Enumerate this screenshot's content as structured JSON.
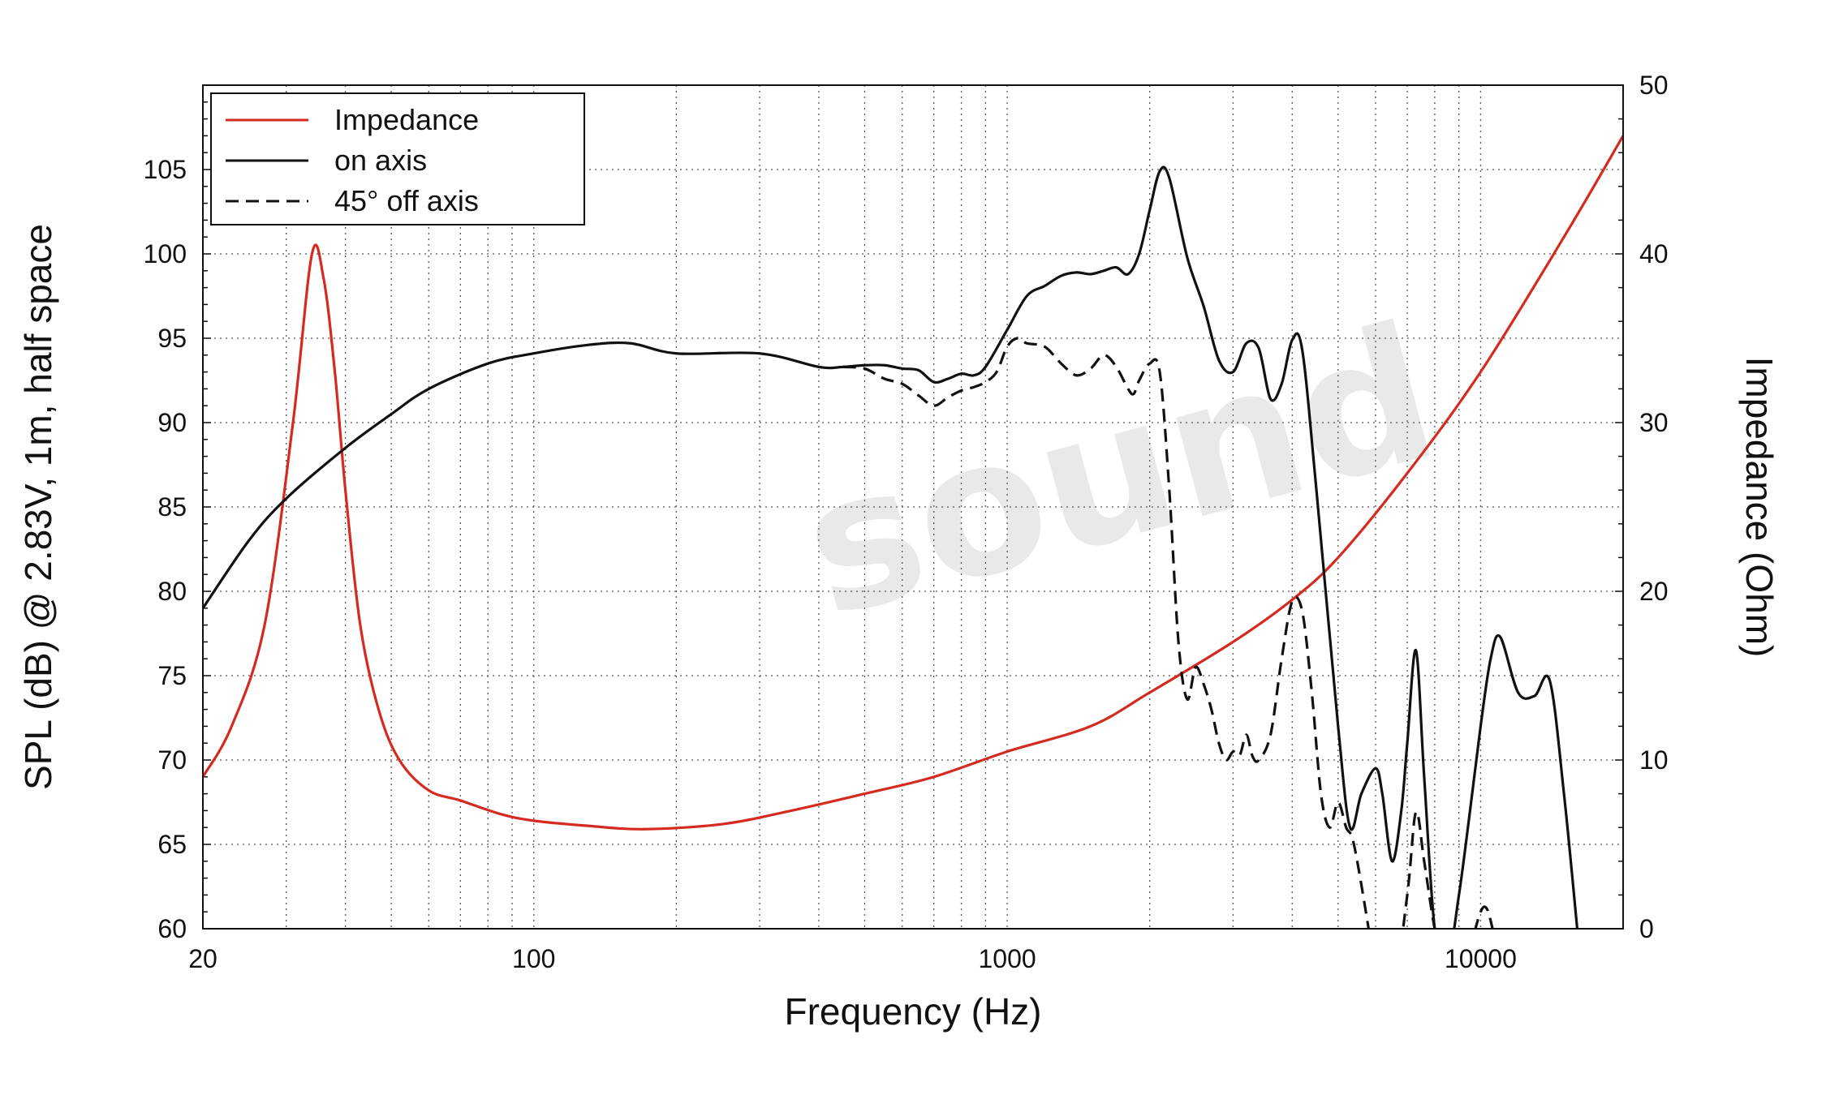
{
  "watermark": "sound",
  "chart_data": {
    "type": "line",
    "x_scale": "log",
    "xlim": [
      20,
      20000
    ],
    "ylim_left": [
      60,
      110
    ],
    "ylim_right": [
      0,
      50
    ],
    "xlabel": "Frequency (Hz)",
    "ylabel_left": "SPL (dB) @ 2.83V, 1m, half space",
    "ylabel_right": "Impedance (Ohm)",
    "x_ticks": [
      20,
      100,
      1000,
      10000
    ],
    "y_left_ticks": [
      60,
      65,
      70,
      75,
      80,
      85,
      90,
      95,
      100,
      105
    ],
    "y_right_ticks": [
      0,
      10,
      20,
      30,
      40,
      50
    ],
    "grid": true,
    "legend_position": "top-left",
    "series": [
      {
        "name": "Impedance",
        "axis": "right",
        "color": "#d42a20",
        "style": "solid",
        "x": [
          20,
          23,
          27,
          31,
          34,
          36,
          38,
          40,
          43,
          47,
          52,
          60,
          70,
          85,
          100,
          130,
          170,
          250,
          350,
          500,
          700,
          1000,
          1500,
          2000,
          3000,
          4000,
          5000,
          7000,
          10000,
          15000,
          20000
        ],
        "y": [
          9,
          12,
          18,
          30,
          40,
          38.5,
          33,
          26,
          18,
          13,
          10,
          8.2,
          7.6,
          6.8,
          6.4,
          6.1,
          5.9,
          6.2,
          7,
          8,
          9,
          10.5,
          12,
          14,
          17,
          19.5,
          22,
          27,
          33,
          41,
          47
        ]
      },
      {
        "name": "on axis",
        "axis": "left",
        "color": "#111111",
        "style": "solid",
        "x": [
          20,
          25,
          30,
          40,
          50,
          60,
          80,
          100,
          130,
          160,
          200,
          300,
          400,
          450,
          500,
          550,
          600,
          650,
          700,
          750,
          800,
          850,
          900,
          1000,
          1100,
          1200,
          1300,
          1400,
          1500,
          1600,
          1700,
          1800,
          1900,
          2000,
          2100,
          2200,
          2400,
          2600,
          2800,
          3000,
          3200,
          3400,
          3600,
          3800,
          4000,
          4200,
          4500,
          5000,
          5300,
          5600,
          6000,
          6200,
          6500,
          6800,
          7000,
          7300,
          7600,
          8000,
          8500,
          9000,
          9500,
          10000,
          10500,
          11000,
          12000,
          13000,
          14000,
          15000,
          16000
        ],
        "y": [
          79,
          83,
          85.5,
          88.5,
          90.5,
          92,
          93.5,
          94.1,
          94.6,
          94.7,
          94.1,
          94.1,
          93.3,
          93.3,
          93.4,
          93.4,
          93.2,
          93.1,
          92.4,
          92.6,
          92.9,
          92.8,
          93.3,
          95.5,
          97.5,
          98.1,
          98.7,
          98.9,
          98.8,
          99,
          99.2,
          98.8,
          100,
          102.6,
          104.9,
          104.5,
          99.8,
          96.9,
          93.7,
          93,
          94.7,
          94.4,
          91.4,
          92.3,
          94.9,
          94.3,
          86,
          72,
          66,
          68,
          69.5,
          68,
          64,
          67,
          71,
          76.5,
          69,
          60,
          58,
          62,
          67,
          72,
          76,
          77.3,
          74,
          73.8,
          74.7,
          68,
          60
        ]
      },
      {
        "name": "45° off axis",
        "axis": "left",
        "color": "#111111",
        "style": "dashed",
        "x": [
          450,
          500,
          550,
          600,
          650,
          700,
          750,
          800,
          850,
          900,
          950,
          1000,
          1050,
          1100,
          1200,
          1300,
          1400,
          1500,
          1600,
          1700,
          1800,
          1850,
          1900,
          2000,
          2100,
          2200,
          2300,
          2400,
          2500,
          2600,
          2700,
          2800,
          2900,
          3000,
          3100,
          3200,
          3300,
          3400,
          3600,
          3800,
          4000,
          4200,
          4400,
          4600,
          4800,
          5000,
          5200,
          5400,
          5800,
          6000,
          6500,
          7000,
          7300,
          7600,
          8000,
          8500,
          9000,
          9500,
          10000,
          10300,
          10600,
          11000
        ],
        "y": [
          93.3,
          93.2,
          92.6,
          92.3,
          91.6,
          91,
          91.5,
          91.9,
          92.1,
          92.4,
          93,
          94.5,
          95,
          94.7,
          94.5,
          93.5,
          92.8,
          93.2,
          94,
          93.3,
          92,
          91.7,
          92.5,
          93.5,
          93,
          86,
          77,
          73.6,
          75.5,
          74.5,
          73,
          71,
          70,
          70.5,
          70.3,
          71.5,
          70.2,
          70,
          71.5,
          76,
          79.4,
          78.8,
          74,
          68,
          66,
          67.5,
          66,
          65,
          60,
          57,
          56,
          62,
          66.9,
          64,
          60,
          57,
          58,
          59,
          61,
          61.2,
          60,
          58
        ]
      }
    ]
  }
}
